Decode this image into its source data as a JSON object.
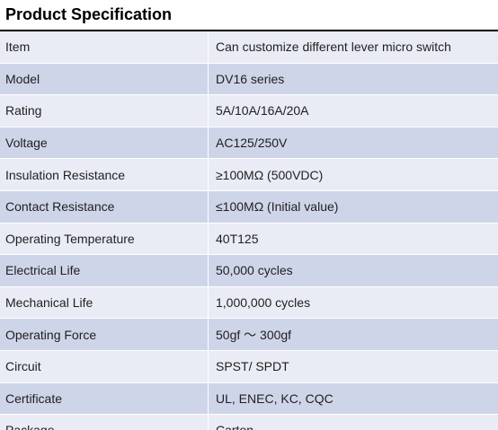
{
  "title": "Product Specification",
  "colors": {
    "row_light": "#e9ecf5",
    "row_dark": "#cfd5e9",
    "rule": "#000000"
  },
  "rows": [
    {
      "label": "Item",
      "value": "Can customize different lever micro switch"
    },
    {
      "label": "Model",
      "value": "DV16 series"
    },
    {
      "label": "Rating",
      "value": "5A/10A/16A/20A"
    },
    {
      "label": "Voltage",
      "value": "AC125/250V"
    },
    {
      "label": "Insulation Resistance",
      "value": "≥100MΩ (500VDC)"
    },
    {
      "label": "Contact Resistance",
      "value": "≤100MΩ (Initial value)"
    },
    {
      "label": "Operating Temperature",
      "value": "40T125"
    },
    {
      "label": "Electrical Life",
      "value": "50,000 cycles"
    },
    {
      "label": "Mechanical Life",
      "value": "1,000,000 cycles"
    },
    {
      "label": "Operating Force",
      "value": "50gf ～ 300gf"
    },
    {
      "label": "Circuit",
      "value": "SPST/ SPDT"
    },
    {
      "label": "Certificate",
      "value": "UL, ENEC, KC, CQC"
    },
    {
      "label": "Package",
      "value": "Carton"
    }
  ]
}
